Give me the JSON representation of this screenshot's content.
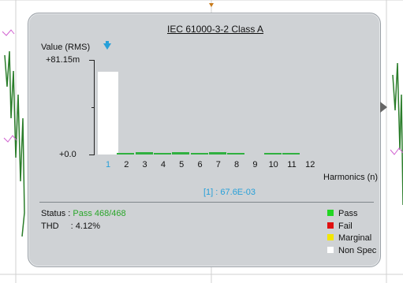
{
  "panel": {
    "title": "IEC 61000-3-2 Class A",
    "y_label": "Value (RMS)",
    "y_max_label": "+81.15m",
    "y_zero_label": "+0.0",
    "x_unit_label": "Harmonics (n)",
    "readout": "[1] : 67.6E-03",
    "status_label": "Status :",
    "status_value": "Pass 468/468",
    "thd_label": "THD",
    "thd_value": ":  4.12%",
    "legend": [
      {
        "label": "Pass",
        "color": "#22d622"
      },
      {
        "label": "Fail",
        "color": "#e01010"
      },
      {
        "label": "Marginal",
        "color": "#f2e600"
      },
      {
        "label": "Non Spec",
        "color": "#ffffff"
      }
    ],
    "right_arrow_icon": "chevron-right-icon",
    "marker_icon": "down-arrow-marker-icon"
  },
  "chart_data": {
    "type": "bar",
    "categories": [
      "1",
      "2",
      "3",
      "4",
      "5",
      "6",
      "7",
      "8",
      "9",
      "10",
      "11",
      "12"
    ],
    "values": [
      67.6,
      0.4,
      0.8,
      0.3,
      1.2,
      0.3,
      1.0,
      0.3,
      0.0,
      0.3,
      0.3,
      0.0
    ],
    "ylim": [
      0,
      81.15
    ],
    "grid": false,
    "bar_colors": [
      "#ffffff",
      "#30b040",
      "#30b040",
      "#30b040",
      "#30b040",
      "#30b040",
      "#30b040",
      "#30b040",
      "#30b040",
      "#30b040",
      "#30b040",
      "#30b040"
    ]
  }
}
